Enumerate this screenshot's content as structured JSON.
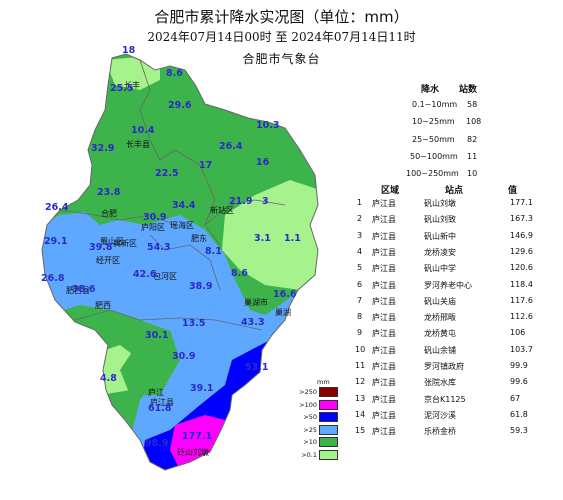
{
  "title": "合肥市累计降水实况图（单位：mm）",
  "subtitle": "2024年07月14日00时  至  2024年07月14日11时",
  "source": "合肥市气象台",
  "region_labels": [
    "长丰",
    "长丰县",
    "合肥",
    "肥西",
    "肥西县",
    "肥东",
    "庐阳区",
    "瑶海区",
    "包河区",
    "经开区",
    "高新区",
    "蜀山区",
    "新站区",
    "巢湖市",
    "巢湖",
    "庐江县",
    "庐江",
    "砭山刘墩"
  ],
  "station_values": [
    "18",
    "8.6",
    "25.5",
    "29.6",
    "10.4",
    "10.3",
    "32.9",
    "26.4",
    "22.5",
    "17",
    "16",
    "23.8",
    "26.4",
    "30.9",
    "34.4",
    "21.9",
    "3",
    "29.1",
    "39.8",
    "54.3",
    "8.1",
    "3.1",
    "1.1",
    "26.8",
    "42.6",
    "8.6",
    "38.6",
    "38.9",
    "16.6",
    "13.5",
    "43.3",
    "30.1",
    "30.9",
    "53.1",
    "4.8",
    "39.1",
    "61.8",
    "177.1",
    "98.9"
  ],
  "legend_summary": {
    "headers": [
      "降水",
      "站数"
    ],
    "rows": [
      {
        "range": "0.1~10mm",
        "count": "58"
      },
      {
        "range": "10~25mm",
        "count": "108"
      },
      {
        "range": "25~50mm",
        "count": "82"
      },
      {
        "range": "50~100mm",
        "count": "11"
      },
      {
        "range": "100~250mm",
        "count": "10"
      }
    ]
  },
  "ranking": {
    "headers": [
      "区域",
      "站点",
      "值"
    ],
    "rows": [
      {
        "no": "1",
        "county": "庐江县",
        "station": "矾山刘墩",
        "value": "177.1"
      },
      {
        "no": "2",
        "county": "庐江县",
        "station": "矾山刘致",
        "value": "167.3"
      },
      {
        "no": "3",
        "county": "庐江县",
        "station": "矾山新中",
        "value": "146.9"
      },
      {
        "no": "4",
        "county": "庐江县",
        "station": "龙桥凌安",
        "value": "129.6"
      },
      {
        "no": "5",
        "county": "庐江县",
        "station": "矾山中学",
        "value": "120.6"
      },
      {
        "no": "6",
        "county": "庐江县",
        "station": "罗河养老中心",
        "value": "118.4"
      },
      {
        "no": "7",
        "county": "庐江县",
        "station": "矾山关庙",
        "value": "117.6"
      },
      {
        "no": "8",
        "county": "庐江县",
        "station": "龙桥邢畈",
        "value": "112.6"
      },
      {
        "no": "9",
        "county": "庐江县",
        "station": "龙桥黄屯",
        "value": "106"
      },
      {
        "no": "10",
        "county": "庐江县",
        "station": "矾山余铺",
        "value": "103.7"
      },
      {
        "no": "11",
        "county": "庐江县",
        "station": "罗河镇政府",
        "value": "99.9"
      },
      {
        "no": "12",
        "county": "庐江县",
        "station": "张院水库",
        "value": "99.6"
      },
      {
        "no": "13",
        "county": "庐江县",
        "station": "京台K1125",
        "value": "67"
      },
      {
        "no": "14",
        "county": "庐江县",
        "station": "泥河沙溪",
        "value": "61.8"
      },
      {
        "no": "15",
        "county": "庐江县",
        "station": "乐桥金桥",
        "value": "59.3"
      }
    ]
  },
  "color_scale": {
    "unit": "mm",
    "levels": [
      {
        "label": ">250",
        "color": "#8b0000"
      },
      {
        "label": ">100",
        "color": "#ff00ff"
      },
      {
        "label": ">50",
        "color": "#0000ff"
      },
      {
        "label": ">25",
        "color": "#5fa8ff"
      },
      {
        "label": ">10",
        "color": "#3cb44b"
      },
      {
        "label": ">0.1",
        "color": "#a6f28c"
      }
    ]
  }
}
